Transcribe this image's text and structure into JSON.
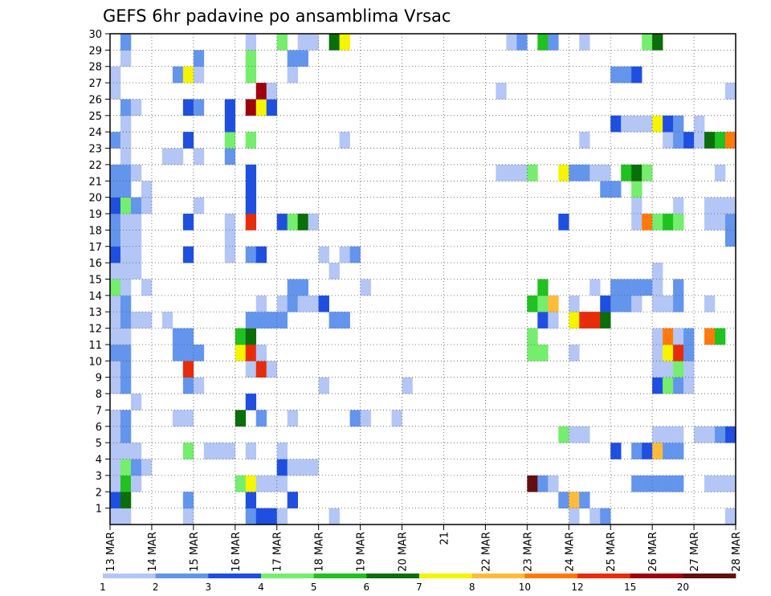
{
  "chart_data": {
    "type": "heatmap",
    "title": "GEFS 6hr padavine po ansamblima Vrsac",
    "xlabel": "",
    "ylabel": "",
    "x_ticks": [
      "13 MAR",
      "14 MAR",
      "15 MAR",
      "16 MAR",
      "17 MAR",
      "18 MAR",
      "19 MAR",
      "20 MAR",
      "21",
      "22 MAR",
      "23 MAR",
      "24 MAR",
      "25 MAR",
      "26 MAR",
      "27 MAR",
      "28 MAR"
    ],
    "y_ticks": [
      1,
      2,
      3,
      4,
      5,
      6,
      7,
      8,
      9,
      10,
      11,
      12,
      13,
      14,
      15,
      16,
      17,
      18,
      19,
      20,
      21,
      22,
      23,
      24,
      25,
      26,
      27,
      28,
      29,
      30
    ],
    "x_steps_per_day": 4,
    "x_steps": 60,
    "members": 30,
    "grid": "dotted",
    "colorbar": {
      "labels": [
        "1",
        "2",
        "3",
        "4",
        "5",
        "6",
        "7",
        "8",
        "10",
        "12",
        "15",
        "20"
      ],
      "levels": [
        1,
        2,
        3,
        4,
        5,
        6,
        7,
        8,
        10,
        12,
        15,
        20
      ],
      "colors": [
        "#b3c6f5",
        "#6495ed",
        "#1f4fe0",
        "#74ee6c",
        "#1fc21f",
        "#0a6e0a",
        "#f5f500",
        "#ffbb3a",
        "#ff7a0a",
        "#e82c0a",
        "#a0000a",
        "#640f0f"
      ]
    },
    "cells_format": "[x_step, member, level_index]",
    "cells": [
      [
        1,
        1,
        0
      ],
      [
        1,
        2,
        2
      ],
      [
        1,
        3,
        0
      ],
      [
        1,
        4,
        0
      ],
      [
        1,
        5,
        0
      ],
      [
        1,
        6,
        0
      ],
      [
        1,
        7,
        0
      ],
      [
        1,
        9,
        0
      ],
      [
        1,
        10,
        0
      ],
      [
        1,
        11,
        1
      ],
      [
        1,
        12,
        0
      ],
      [
        1,
        13,
        0
      ],
      [
        1,
        14,
        0
      ],
      [
        1,
        15,
        3
      ],
      [
        1,
        16,
        0
      ],
      [
        1,
        17,
        2
      ],
      [
        1,
        18,
        1
      ],
      [
        1,
        19,
        1
      ],
      [
        1,
        20,
        2
      ],
      [
        1,
        21,
        1
      ],
      [
        1,
        22,
        1
      ],
      [
        1,
        24,
        1
      ],
      [
        1,
        27,
        0
      ],
      [
        1,
        28,
        0
      ],
      [
        2,
        1,
        0
      ],
      [
        2,
        2,
        5
      ],
      [
        2,
        3,
        4
      ],
      [
        2,
        4,
        3
      ],
      [
        2,
        5,
        0
      ],
      [
        2,
        6,
        1
      ],
      [
        2,
        7,
        1
      ],
      [
        2,
        9,
        1
      ],
      [
        2,
        10,
        1
      ],
      [
        2,
        11,
        1
      ],
      [
        2,
        12,
        0
      ],
      [
        2,
        13,
        1
      ],
      [
        2,
        14,
        1
      ],
      [
        2,
        15,
        0
      ],
      [
        2,
        16,
        0
      ],
      [
        2,
        17,
        0
      ],
      [
        2,
        18,
        0
      ],
      [
        2,
        19,
        0
      ],
      [
        2,
        20,
        3
      ],
      [
        2,
        21,
        1
      ],
      [
        2,
        22,
        1
      ],
      [
        2,
        23,
        0
      ],
      [
        2,
        24,
        0
      ],
      [
        2,
        25,
        0
      ],
      [
        2,
        26,
        1
      ],
      [
        2,
        29,
        0
      ],
      [
        2,
        30,
        1
      ],
      [
        3,
        3,
        0
      ],
      [
        3,
        4,
        1
      ],
      [
        3,
        5,
        0
      ],
      [
        3,
        8,
        0
      ],
      [
        3,
        13,
        0
      ],
      [
        3,
        16,
        0
      ],
      [
        3,
        17,
        0
      ],
      [
        3,
        18,
        0
      ],
      [
        3,
        19,
        0
      ],
      [
        3,
        20,
        1
      ],
      [
        3,
        22,
        0
      ],
      [
        3,
        26,
        0
      ],
      [
        4,
        4,
        0
      ],
      [
        4,
        13,
        0
      ],
      [
        4,
        15,
        0
      ],
      [
        4,
        20,
        0
      ],
      [
        4,
        21,
        0
      ],
      [
        6,
        13,
        0
      ],
      [
        6,
        23,
        0
      ],
      [
        7,
        7,
        0
      ],
      [
        7,
        11,
        1
      ],
      [
        7,
        12,
        1
      ],
      [
        7,
        23,
        0
      ],
      [
        7,
        28,
        1
      ],
      [
        8,
        1,
        0
      ],
      [
        8,
        2,
        1
      ],
      [
        8,
        5,
        3
      ],
      [
        8,
        7,
        0
      ],
      [
        8,
        9,
        1
      ],
      [
        8,
        10,
        9
      ],
      [
        8,
        11,
        1
      ],
      [
        8,
        12,
        1
      ],
      [
        8,
        17,
        2
      ],
      [
        8,
        19,
        2
      ],
      [
        8,
        24,
        2
      ],
      [
        8,
        26,
        2
      ],
      [
        8,
        28,
        6
      ],
      [
        9,
        9,
        0
      ],
      [
        9,
        11,
        1
      ],
      [
        9,
        20,
        0
      ],
      [
        9,
        23,
        0
      ],
      [
        9,
        26,
        1
      ],
      [
        9,
        28,
        0
      ],
      [
        9,
        29,
        1
      ],
      [
        10,
        5,
        0
      ],
      [
        11,
        5,
        0
      ],
      [
        12,
        5,
        0
      ],
      [
        12,
        17,
        0
      ],
      [
        12,
        18,
        0
      ],
      [
        12,
        19,
        0
      ],
      [
        12,
        23,
        1
      ],
      [
        12,
        24,
        3
      ],
      [
        12,
        25,
        2
      ],
      [
        12,
        26,
        2
      ],
      [
        13,
        3,
        3
      ],
      [
        13,
        7,
        5
      ],
      [
        13,
        11,
        6
      ],
      [
        13,
        12,
        4
      ],
      [
        14,
        1,
        1
      ],
      [
        14,
        2,
        2
      ],
      [
        14,
        3,
        6
      ],
      [
        14,
        5,
        0
      ],
      [
        14,
        8,
        2
      ],
      [
        14,
        10,
        0
      ],
      [
        14,
        11,
        9
      ],
      [
        14,
        12,
        5
      ],
      [
        14,
        13,
        1
      ],
      [
        14,
        17,
        1
      ],
      [
        14,
        19,
        9
      ],
      [
        14,
        20,
        2
      ],
      [
        14,
        21,
        2
      ],
      [
        14,
        22,
        2
      ],
      [
        14,
        24,
        3
      ],
      [
        14,
        26,
        10
      ],
      [
        14,
        28,
        3
      ],
      [
        14,
        29,
        3
      ],
      [
        14,
        30,
        0
      ],
      [
        15,
        1,
        2
      ],
      [
        15,
        3,
        0
      ],
      [
        15,
        7,
        1
      ],
      [
        15,
        10,
        9
      ],
      [
        15,
        11,
        0
      ],
      [
        15,
        13,
        1
      ],
      [
        15,
        14,
        0
      ],
      [
        15,
        17,
        2
      ],
      [
        15,
        26,
        6
      ],
      [
        15,
        27,
        10
      ],
      [
        16,
        1,
        2
      ],
      [
        16,
        3,
        0
      ],
      [
        16,
        10,
        0
      ],
      [
        16,
        13,
        1
      ],
      [
        16,
        26,
        2
      ],
      [
        16,
        27,
        0
      ],
      [
        17,
        1,
        0
      ],
      [
        17,
        3,
        0
      ],
      [
        17,
        4,
        2
      ],
      [
        17,
        5,
        0
      ],
      [
        17,
        13,
        1
      ],
      [
        17,
        14,
        0
      ],
      [
        17,
        19,
        2
      ],
      [
        17,
        30,
        3
      ],
      [
        18,
        2,
        2
      ],
      [
        18,
        4,
        0
      ],
      [
        18,
        7,
        0
      ],
      [
        18,
        14,
        1
      ],
      [
        18,
        15,
        1
      ],
      [
        18,
        19,
        3
      ],
      [
        18,
        28,
        0
      ],
      [
        18,
        29,
        1
      ],
      [
        19,
        4,
        0
      ],
      [
        19,
        14,
        0
      ],
      [
        19,
        15,
        1
      ],
      [
        19,
        19,
        5
      ],
      [
        19,
        29,
        1
      ],
      [
        19,
        30,
        0
      ],
      [
        20,
        4,
        0
      ],
      [
        20,
        14,
        0
      ],
      [
        20,
        19,
        0
      ],
      [
        20,
        30,
        0
      ],
      [
        21,
        9,
        0
      ],
      [
        21,
        14,
        2
      ],
      [
        21,
        17,
        0
      ],
      [
        22,
        1,
        0
      ],
      [
        22,
        13,
        1
      ],
      [
        22,
        16,
        0
      ],
      [
        22,
        30,
        5
      ],
      [
        23,
        13,
        1
      ],
      [
        23,
        17,
        0
      ],
      [
        23,
        24,
        0
      ],
      [
        23,
        30,
        6
      ],
      [
        24,
        7,
        1
      ],
      [
        24,
        17,
        1
      ],
      [
        25,
        7,
        0
      ],
      [
        25,
        15,
        0
      ],
      [
        28,
        7,
        0
      ],
      [
        29,
        9,
        0
      ],
      [
        38,
        22,
        0
      ],
      [
        38,
        27,
        0
      ],
      [
        39,
        22,
        0
      ],
      [
        39,
        30,
        0
      ],
      [
        40,
        22,
        0
      ],
      [
        40,
        30,
        1
      ],
      [
        41,
        3,
        11
      ],
      [
        41,
        11,
        3
      ],
      [
        41,
        12,
        3
      ],
      [
        41,
        14,
        4
      ],
      [
        41,
        22,
        3
      ],
      [
        42,
        3,
        1
      ],
      [
        42,
        11,
        3
      ],
      [
        42,
        13,
        2
      ],
      [
        42,
        14,
        3
      ],
      [
        42,
        15,
        4
      ],
      [
        42,
        30,
        4
      ],
      [
        43,
        3,
        0
      ],
      [
        43,
        13,
        0
      ],
      [
        43,
        14,
        7
      ],
      [
        43,
        30,
        1
      ],
      [
        44,
        6,
        3
      ],
      [
        44,
        22,
        6
      ],
      [
        44,
        19,
        2
      ],
      [
        44,
        2,
        1
      ],
      [
        45,
        1,
        0
      ],
      [
        45,
        6,
        0
      ],
      [
        45,
        11,
        0
      ],
      [
        45,
        13,
        6
      ],
      [
        45,
        14,
        0
      ],
      [
        45,
        2,
        7
      ],
      [
        45,
        22,
        1
      ],
      [
        46,
        2,
        1
      ],
      [
        46,
        6,
        0
      ],
      [
        46,
        13,
        9
      ],
      [
        46,
        22,
        1
      ],
      [
        46,
        24,
        0
      ],
      [
        46,
        30,
        0
      ],
      [
        47,
        1,
        0
      ],
      [
        47,
        13,
        9
      ],
      [
        47,
        15,
        0
      ],
      [
        47,
        22,
        0
      ],
      [
        48,
        1,
        1
      ],
      [
        48,
        13,
        5
      ],
      [
        48,
        14,
        2
      ],
      [
        48,
        21,
        1
      ],
      [
        48,
        22,
        0
      ],
      [
        49,
        5,
        2
      ],
      [
        49,
        14,
        1
      ],
      [
        49,
        15,
        1
      ],
      [
        49,
        21,
        1
      ],
      [
        49,
        25,
        2
      ],
      [
        49,
        28,
        1
      ],
      [
        50,
        14,
        1
      ],
      [
        50,
        15,
        1
      ],
      [
        50,
        22,
        4
      ],
      [
        50,
        25,
        0
      ],
      [
        50,
        28,
        1
      ],
      [
        51,
        3,
        1
      ],
      [
        51,
        5,
        1
      ],
      [
        51,
        14,
        0
      ],
      [
        51,
        15,
        1
      ],
      [
        51,
        19,
        0
      ],
      [
        51,
        20,
        0
      ],
      [
        51,
        21,
        3
      ],
      [
        51,
        22,
        5
      ],
      [
        51,
        25,
        0
      ],
      [
        51,
        28,
        2
      ],
      [
        52,
        3,
        1
      ],
      [
        52,
        5,
        2
      ],
      [
        52,
        15,
        1
      ],
      [
        52,
        19,
        8
      ],
      [
        52,
        22,
        3
      ],
      [
        52,
        25,
        0
      ],
      [
        52,
        30,
        3
      ],
      [
        53,
        3,
        1
      ],
      [
        53,
        5,
        7
      ],
      [
        53,
        6,
        0
      ],
      [
        53,
        9,
        2
      ],
      [
        53,
        10,
        0
      ],
      [
        53,
        11,
        0
      ],
      [
        53,
        12,
        0
      ],
      [
        53,
        14,
        0
      ],
      [
        53,
        15,
        0
      ],
      [
        53,
        16,
        0
      ],
      [
        53,
        19,
        3
      ],
      [
        53,
        25,
        6
      ],
      [
        53,
        30,
        5
      ],
      [
        54,
        3,
        1
      ],
      [
        54,
        5,
        1
      ],
      [
        54,
        6,
        0
      ],
      [
        54,
        9,
        3
      ],
      [
        54,
        10,
        0
      ],
      [
        54,
        11,
        6
      ],
      [
        54,
        12,
        8
      ],
      [
        54,
        14,
        0
      ],
      [
        54,
        19,
        4
      ],
      [
        54,
        24,
        0
      ],
      [
        54,
        25,
        2
      ],
      [
        55,
        3,
        1
      ],
      [
        55,
        5,
        1
      ],
      [
        55,
        6,
        0
      ],
      [
        55,
        9,
        1
      ],
      [
        55,
        10,
        3
      ],
      [
        55,
        11,
        9
      ],
      [
        55,
        12,
        0
      ],
      [
        55,
        14,
        1
      ],
      [
        55,
        15,
        1
      ],
      [
        55,
        19,
        3
      ],
      [
        55,
        20,
        0
      ],
      [
        55,
        24,
        1
      ],
      [
        55,
        25,
        1
      ],
      [
        56,
        9,
        0
      ],
      [
        56,
        10,
        0
      ],
      [
        56,
        11,
        1
      ],
      [
        56,
        12,
        1
      ],
      [
        56,
        24,
        2
      ],
      [
        57,
        6,
        0
      ],
      [
        57,
        24,
        0
      ],
      [
        57,
        25,
        0
      ],
      [
        58,
        3,
        0
      ],
      [
        58,
        6,
        0
      ],
      [
        58,
        12,
        8
      ],
      [
        58,
        14,
        0
      ],
      [
        58,
        24,
        5
      ],
      [
        58,
        20,
        0
      ],
      [
        58,
        19,
        0
      ],
      [
        59,
        3,
        0
      ],
      [
        59,
        6,
        1
      ],
      [
        59,
        12,
        4
      ],
      [
        59,
        19,
        0
      ],
      [
        59,
        20,
        0
      ],
      [
        59,
        22,
        0
      ],
      [
        59,
        24,
        4
      ],
      [
        60,
        1,
        0
      ],
      [
        60,
        3,
        0
      ],
      [
        60,
        6,
        2
      ],
      [
        60,
        19,
        1
      ],
      [
        60,
        20,
        0
      ],
      [
        60,
        24,
        8
      ],
      [
        60,
        27,
        0
      ],
      [
        60,
        18,
        1
      ]
    ]
  }
}
